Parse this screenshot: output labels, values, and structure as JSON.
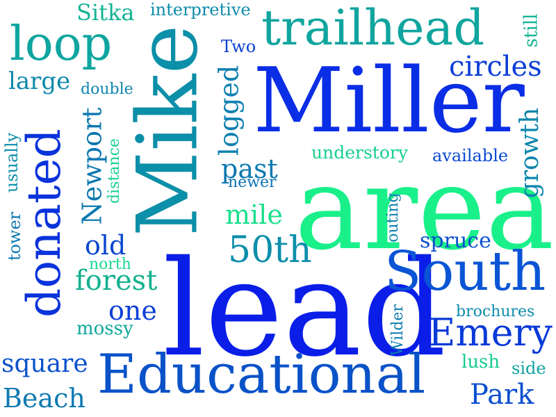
{
  "words": [
    {
      "text": "lead",
      "color": "#0a1ee8"
    },
    {
      "text": "area",
      "color": "#19f08a"
    },
    {
      "text": "Miller",
      "color": "#0a2de6"
    },
    {
      "text": "Mike",
      "color": "#0c8fa8"
    },
    {
      "text": "Educational",
      "color": "#0a52c8"
    },
    {
      "text": "South",
      "color": "#0a55d6"
    },
    {
      "text": "trailhead",
      "color": "#10a59e"
    },
    {
      "text": "donated",
      "color": "#0a33dc"
    },
    {
      "text": "loop",
      "color": "#0ea5a0"
    },
    {
      "text": "Emery",
      "color": "#0a3ad8"
    },
    {
      "text": "50th",
      "color": "#0b8eaa"
    },
    {
      "text": "Newport",
      "color": "#0c78b0"
    },
    {
      "text": "forest",
      "color": "#12b08e"
    },
    {
      "text": "logged",
      "color": "#0d80b0"
    },
    {
      "text": "circles",
      "color": "#0a3ed6"
    },
    {
      "text": "growth",
      "color": "#0d86ad"
    },
    {
      "text": "square",
      "color": "#0a52cc"
    },
    {
      "text": "Beach",
      "color": "#0d7ab2"
    },
    {
      "text": "Park",
      "color": "#0a4ed0"
    },
    {
      "text": "old",
      "color": "#0a46d0"
    },
    {
      "text": "one",
      "color": "#0a3ed8"
    },
    {
      "text": "past",
      "color": "#0c78b0"
    },
    {
      "text": "mile",
      "color": "#1adf8c"
    },
    {
      "text": "spruce",
      "color": "#0a50d0"
    },
    {
      "text": "large",
      "color": "#0d89aa"
    },
    {
      "text": "Sitka",
      "color": "#12b394"
    },
    {
      "text": "understory",
      "color": "#16d08c"
    },
    {
      "text": "available",
      "color": "#0a48d4"
    },
    {
      "text": "Two",
      "color": "#0a40d4"
    },
    {
      "text": "interpretive",
      "color": "#0c8cab"
    },
    {
      "text": "still",
      "color": "#12b495"
    },
    {
      "text": "double",
      "color": "#0d86ab"
    },
    {
      "text": "distance",
      "color": "#16d08e"
    },
    {
      "text": "usually",
      "color": "#0d8fac"
    },
    {
      "text": "tower",
      "color": "#0c78b2"
    },
    {
      "text": "newer",
      "color": "#0c72b4"
    },
    {
      "text": "north",
      "color": "#1ad890"
    },
    {
      "text": "outing",
      "color": "#0c80ae"
    },
    {
      "text": "brochures",
      "color": "#0d8cab"
    },
    {
      "text": "Wilder",
      "color": "#0c7cb0"
    },
    {
      "text": "mossy",
      "color": "#10a69c"
    },
    {
      "text": "lush",
      "color": "#16cc90"
    },
    {
      "text": "side",
      "color": "#10a2a0"
    }
  ]
}
